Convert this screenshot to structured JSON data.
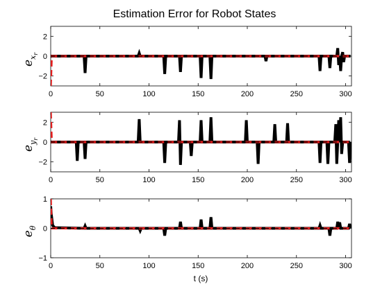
{
  "chart_data": [
    {
      "type": "line",
      "title": "Estimation Error for Robot States",
      "ylabel": "e_{x_r}",
      "xlabel": "",
      "xlim": [
        0,
        306
      ],
      "ylim": [
        -3,
        3
      ],
      "xticks": [
        0,
        50,
        100,
        150,
        200,
        250,
        300
      ],
      "yticks": [
        -2,
        0,
        2
      ],
      "grid": false,
      "series": [
        {
          "style": "solid-black",
          "x": [
            0,
            34,
            35,
            36,
            89,
            90,
            91,
            115,
            116,
            117,
            131,
            132,
            133,
            152,
            153,
            154,
            162,
            163,
            164,
            218,
            219,
            220,
            273,
            274,
            275,
            283,
            284,
            285,
            291,
            292,
            293,
            294,
            295,
            296,
            297,
            298,
            299,
            305
          ],
          "y": [
            0,
            0,
            -1.7,
            0,
            0,
            0.3,
            0,
            0,
            -1.8,
            0,
            0,
            -1.6,
            0,
            0,
            -2.2,
            0,
            0,
            -2.3,
            0,
            0,
            -0.5,
            0,
            0,
            -1.5,
            0,
            0,
            -1.2,
            0,
            0,
            0.8,
            -0.9,
            0,
            -1.5,
            0,
            0.4,
            -0.6,
            0,
            0
          ]
        },
        {
          "style": "dashed-red",
          "x": [
            0,
            1,
            305
          ],
          "y": [
            -3,
            0,
            0
          ]
        }
      ]
    },
    {
      "type": "line",
      "title": "",
      "ylabel": "e_{y_r}",
      "xlabel": "",
      "xlim": [
        0,
        306
      ],
      "ylim": [
        -3,
        3
      ],
      "xticks": [
        0,
        50,
        100,
        150,
        200,
        250,
        300
      ],
      "yticks": [
        -2,
        0,
        2
      ],
      "grid": false,
      "series": [
        {
          "style": "solid-black",
          "x": [
            0,
            26,
            27,
            28,
            34,
            35,
            36,
            89,
            90,
            91,
            115,
            116,
            117,
            130,
            131,
            132,
            133,
            134,
            142,
            143,
            144,
            152,
            153,
            154,
            162,
            163,
            164,
            198,
            199,
            200,
            210,
            211,
            212,
            227,
            228,
            229,
            240,
            241,
            242,
            273,
            274,
            275,
            281,
            282,
            283,
            289,
            290,
            291,
            292,
            293,
            294,
            295,
            296,
            297,
            303,
            304,
            305
          ],
          "y": [
            0,
            0,
            -1.9,
            0,
            0,
            -1.7,
            0,
            0,
            2.3,
            0,
            0,
            -2.1,
            0,
            0,
            2.2,
            -2.3,
            0,
            0,
            0,
            -1.4,
            0,
            0,
            2.2,
            0,
            0,
            2.5,
            0,
            0,
            2.2,
            0,
            0,
            -2.2,
            0,
            0,
            1.8,
            0,
            0,
            1.9,
            0,
            0,
            -2.1,
            0,
            0,
            -2.2,
            0,
            0,
            1.8,
            -2.2,
            0,
            2.2,
            0,
            2.5,
            -1.2,
            0,
            0,
            -2.1,
            0
          ]
        },
        {
          "style": "dashed-red",
          "x": [
            0,
            1,
            305
          ],
          "y": [
            3,
            0,
            0
          ]
        }
      ]
    },
    {
      "type": "line",
      "title": "",
      "ylabel": "e_θ",
      "xlabel": "t (s)",
      "xlim": [
        0,
        306
      ],
      "ylim": [
        -1,
        1
      ],
      "xticks": [
        0,
        50,
        100,
        150,
        200,
        250,
        300
      ],
      "xtick_labels": [
        "0",
        "50",
        "100",
        "150",
        "200",
        "250",
        "300"
      ],
      "yticks": [
        -1,
        0,
        1
      ],
      "grid": false,
      "series": [
        {
          "style": "solid-black",
          "x": [
            0,
            0.5,
            2,
            4,
            34,
            35,
            36,
            90,
            91,
            92,
            115,
            116,
            117,
            131,
            132,
            133,
            152,
            153,
            154,
            162,
            163,
            164,
            273,
            274,
            275,
            283,
            284,
            285,
            291,
            292,
            293,
            294,
            295,
            303,
            304,
            305
          ],
          "y": [
            0.75,
            0.5,
            0.1,
            0.02,
            0,
            0.08,
            0,
            0,
            -0.08,
            0,
            0,
            -0.25,
            0,
            0,
            0.22,
            0,
            0,
            0.3,
            0,
            0,
            0.38,
            0,
            0,
            0.1,
            0,
            0,
            -0.25,
            0,
            0,
            0.22,
            0,
            0.2,
            0,
            0,
            0.15,
            0
          ]
        },
        {
          "style": "dashed-red",
          "x": [
            0,
            1,
            305
          ],
          "y": [
            1,
            0,
            0
          ]
        }
      ]
    }
  ]
}
